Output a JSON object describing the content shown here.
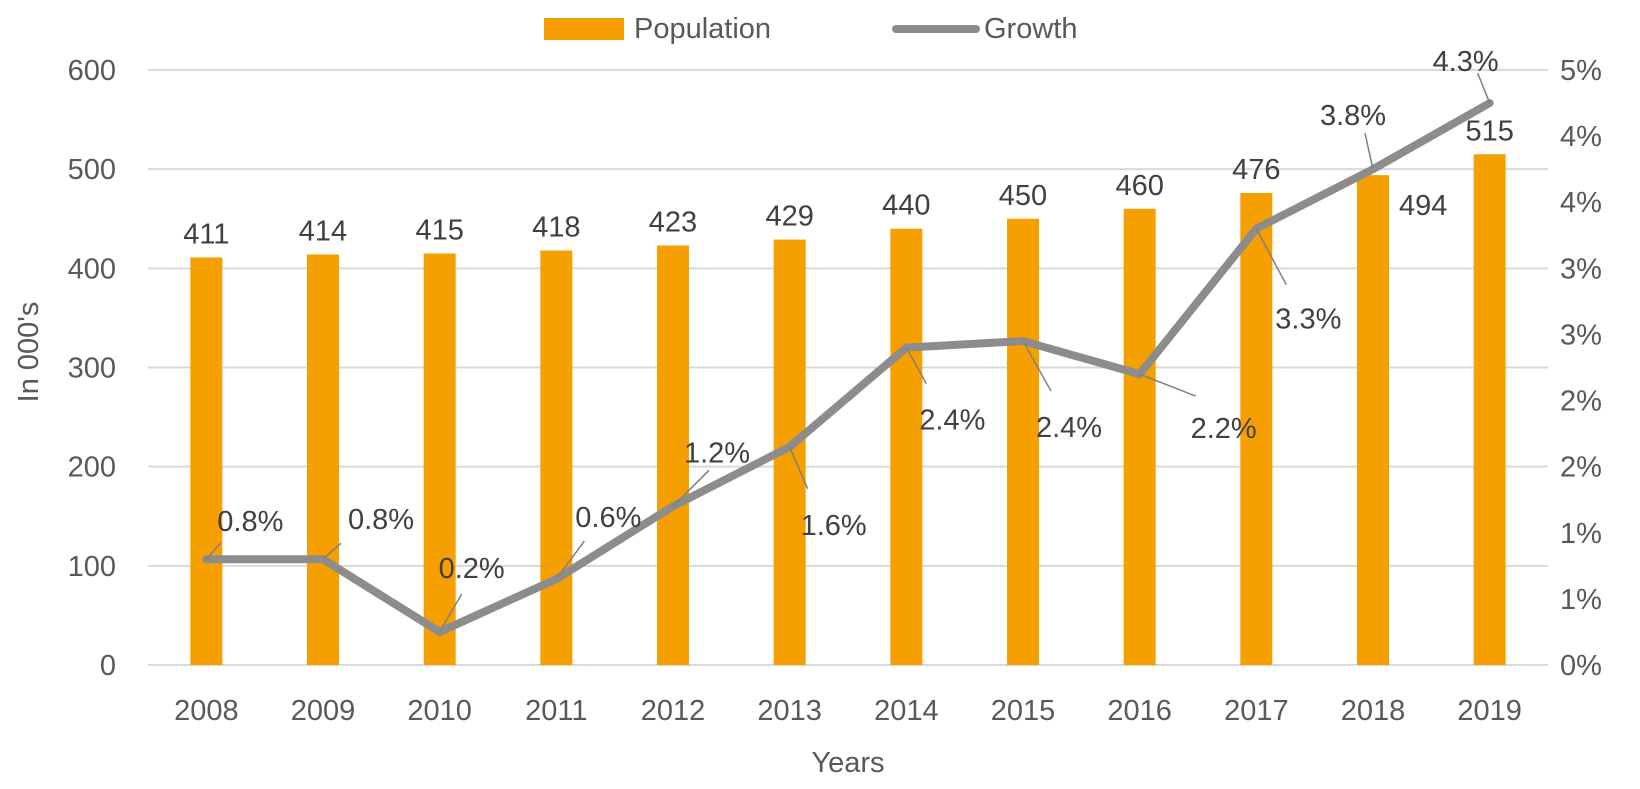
{
  "chart_data": {
    "type": "bar+line",
    "categories": [
      "2008",
      "2009",
      "2010",
      "2011",
      "2012",
      "2013",
      "2014",
      "2015",
      "2016",
      "2017",
      "2018",
      "2019"
    ],
    "series": [
      {
        "name": "Population",
        "kind": "bar",
        "axis": "left",
        "color": "#f5a000",
        "values": [
          411,
          414,
          415,
          418,
          423,
          429,
          440,
          450,
          460,
          476,
          494,
          515
        ],
        "labels": [
          "411",
          "414",
          "415",
          "418",
          "423",
          "429",
          "440",
          "450",
          "460",
          "476",
          "494",
          "515"
        ]
      },
      {
        "name": "Growth",
        "kind": "line",
        "axis": "right",
        "color": "#8c8c8c",
        "values": [
          0.8,
          0.8,
          0.25,
          0.65,
          1.2,
          1.65,
          2.4,
          2.45,
          2.2,
          3.3,
          3.75,
          4.25
        ],
        "labels": [
          "0.8%",
          "0.8%",
          "0.2%",
          "0.6%",
          "1.2%",
          "1.6%",
          "2.4%",
          "2.4%",
          "2.2%",
          "3.3%",
          "3.8%",
          "4.3%"
        ]
      }
    ],
    "xlabel": "Years",
    "ylabel": "In 000's",
    "ylim": [
      0,
      600
    ],
    "yticks": [
      "0",
      "100",
      "200",
      "300",
      "400",
      "500",
      "600"
    ],
    "y2lim": [
      0,
      4.5
    ],
    "y2ticks": [
      "0%",
      "1%",
      "1%",
      "2%",
      "2%",
      "3%",
      "3%",
      "4%",
      "4%",
      "5%"
    ],
    "grid": true,
    "legend": "top-center"
  }
}
